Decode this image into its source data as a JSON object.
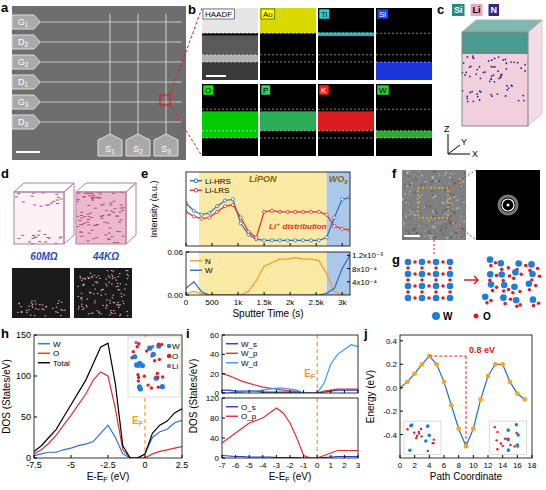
{
  "panels": {
    "a": {
      "letter": "a",
      "pads": [
        [
          "G",
          "1"
        ],
        [
          "D",
          "2"
        ],
        [
          "G",
          "2"
        ],
        [
          "D",
          "1"
        ],
        [
          "G",
          "3"
        ],
        [
          "D",
          "3"
        ]
      ],
      "sources": [
        [
          "S",
          "1"
        ],
        [
          "S",
          "2"
        ],
        [
          "S",
          "3"
        ]
      ]
    },
    "b": {
      "letter": "b",
      "maps": [
        "HAADF",
        "Au",
        "Ti",
        "Si",
        "O",
        "P",
        "K",
        "W"
      ],
      "colors": [
        "#ffffff",
        "#ffff00",
        "#33cccc",
        "#1f3fff",
        "#00ee00",
        "#33cc66",
        "#ff2020",
        "#33cc33"
      ]
    },
    "c": {
      "letter": "c",
      "elements": [
        "Si",
        "Li",
        "N"
      ],
      "colors": [
        "#2a8a7a",
        "#e8a8c0",
        "#2a2a8a"
      ],
      "axes": [
        "Z",
        "Y",
        "X"
      ]
    },
    "d": {
      "letter": "d",
      "states": [
        "60MΩ",
        "44KΩ"
      ]
    },
    "f": {
      "letter": "f"
    },
    "g": {
      "letter": "g",
      "atoms": [
        "W",
        "O"
      ],
      "colors": [
        "#1f7fd8",
        "#e02020"
      ]
    }
  },
  "chart_data": [
    {
      "letter": "e",
      "type": "line",
      "ylabel": "Intensity (a.u.)",
      "xlim": [
        0,
        3150
      ],
      "ylim": [
        0,
        1.3
      ],
      "xticks": [
        0,
        500,
        {
          "value": 1000,
          "label": "1k"
        },
        {
          "value": 1500,
          "label": "1.5k"
        },
        {
          "value": 2000,
          "label": "2k"
        },
        {
          "value": 2500,
          "label": "2.5k"
        },
        {
          "value": 3000,
          "label": "3k"
        }
      ],
      "tick_labels": false,
      "legend": "upper left",
      "marker": "circle",
      "regions": [
        {
          "label": "LiPON",
          "from": 250,
          "to": 2700,
          "color": "#fbe9a6"
        },
        {
          "label": [
            "WO",
            "x"
          ],
          "from": 2700,
          "to": 3150,
          "color": "#a9c8ea"
        }
      ],
      "x": [
        0,
        150,
        300,
        450,
        600,
        750,
        900,
        1050,
        1200,
        1350,
        1500,
        1650,
        1800,
        1950,
        2100,
        2250,
        2400,
        2550,
        2700,
        2850,
        3000,
        3150
      ],
      "series": [
        {
          "name": "Li-HRS",
          "color": "#2f6fb8",
          "values": [
            0.75,
            0.62,
            0.55,
            0.58,
            0.7,
            0.8,
            0.82,
            0.4,
            0.2,
            0.12,
            0.1,
            0.1,
            0.1,
            0.1,
            0.1,
            0.1,
            0.1,
            0.1,
            0.15,
            0.5,
            0.82,
            0.85
          ]
        },
        {
          "name": "Li-LRS",
          "color": "#e0302a",
          "values": [
            0.6,
            0.52,
            0.48,
            0.5,
            0.6,
            0.7,
            0.72,
            0.5,
            0.25,
            0.15,
            0.6,
            0.62,
            0.6,
            0.6,
            0.6,
            0.6,
            0.6,
            0.6,
            0.55,
            0.35,
            0.3,
            0.28
          ]
        }
      ],
      "annotations": [
        {
          "type": "text",
          "x": 2700,
          "y": 0.3,
          "label": "Li⁺ distribution",
          "color": "#e0302a"
        }
      ]
    },
    {
      "type": "line",
      "xlabel": "Sputter Time (s)",
      "xlim": [
        0,
        3150
      ],
      "xticks": [
        0,
        500,
        {
          "value": 1000,
          "label": "1k"
        },
        {
          "value": 1500,
          "label": "1.5k"
        },
        {
          "value": 2000,
          "label": "2k"
        },
        {
          "value": 2500,
          "label": "2.5k"
        },
        {
          "value": 3000,
          "label": "3k"
        }
      ],
      "ylim": [
        0,
        0.06
      ],
      "yticks": [
        {
          "value": 0,
          "label": "0.00"
        },
        {
          "value": 0.06,
          "label": "0.06"
        }
      ],
      "y2lim": [
        0,
        0.0013
      ],
      "y2ticks": [
        {
          "value": 0.0004,
          "label": "4x10⁻⁴"
        },
        {
          "value": 0.0008,
          "label": "8x10⁻⁴"
        },
        {
          "value": 0.0012,
          "label": "1.2x10⁻³"
        }
      ],
      "legend": "upper left",
      "x": [
        0,
        150,
        300,
        450,
        600,
        750,
        900,
        1050,
        1200,
        1350,
        1500,
        1650,
        1800,
        1950,
        2100,
        2250,
        2400,
        2550,
        2700,
        2850,
        3000,
        3150
      ],
      "series": [
        {
          "name": "N",
          "color": "#f0a020",
          "values": [
            0.002,
            0.005,
            0.002,
            0,
            0,
            0,
            0,
            0,
            0.005,
            0.02,
            0.04,
            0.045,
            0.05,
            0.05,
            0.052,
            0.05,
            0.05,
            0.048,
            0.03,
            0.005,
            0,
            0
          ]
        },
        {
          "name": "W",
          "color": "#2f6fb8",
          "axis": "y2",
          "values": [
            0.0002,
            0.0004,
            0.0001,
            0,
            0,
            0,
            0,
            0,
            0,
            0,
            0,
            0,
            0,
            0,
            0,
            0,
            0,
            0,
            5e-05,
            0.0002,
            0.0008,
            0.0012
          ]
        }
      ]
    },
    {
      "letter": "h",
      "type": "line",
      "xlabel": [
        "E-E",
        "F",
        " (eV)"
      ],
      "ylabel": "DOS (States/eV)",
      "xlim": [
        -7.5,
        2.5
      ],
      "xticks": [
        -7.5,
        -5,
        -2.5,
        0,
        2.5
      ],
      "ylim": [
        0,
        150
      ],
      "yticks": [
        0,
        50,
        100,
        150
      ],
      "legend": "upper left",
      "x": [
        -7.5,
        -7,
        -6.5,
        -6,
        -5.5,
        -5,
        -4.5,
        -4,
        -3.5,
        -3,
        -2.5,
        -2,
        -1.5,
        -1,
        -0.5,
        0,
        0.5,
        1,
        1.5,
        2,
        2.5
      ],
      "series": [
        {
          "name": "W",
          "color": "#2f6fd8",
          "values": [
            3,
            5,
            7,
            7,
            10,
            12,
            15,
            17,
            20,
            30,
            40,
            25,
            5,
            0,
            0,
            5,
            25,
            32,
            35,
            43,
            46
          ]
        },
        {
          "name": "O",
          "color": "#e03030",
          "values": [
            5,
            10,
            18,
            28,
            40,
            52,
            65,
            78,
            95,
            105,
            100,
            60,
            10,
            0,
            0,
            0,
            5,
            8,
            10,
            12,
            14
          ]
        },
        {
          "name": "Total",
          "color": "#000000",
          "values": [
            8,
            15,
            25,
            35,
            50,
            65,
            80,
            95,
            115,
            135,
            140,
            90,
            15,
            0,
            0,
            5,
            30,
            40,
            45,
            55,
            60
          ]
        }
      ],
      "annotations": [
        {
          "type": "vline",
          "x": 0,
          "label": [
            "E",
            "F"
          ],
          "color": "#f0a020",
          "line_style": "dashed"
        }
      ],
      "inset_labels": [
        "W",
        "O",
        "Li"
      ]
    },
    {
      "letter": "i",
      "type": "line",
      "ylabel": "DOS (States/eV)",
      "xlim": [
        -7,
        3
      ],
      "xticks": [
        -7,
        -6,
        -5,
        -4,
        -3,
        -2,
        -1,
        0,
        1,
        2,
        3
      ],
      "ylim": [
        0,
        60
      ],
      "yticks": [
        0,
        20,
        40,
        60
      ],
      "tick_labels": "y",
      "legend": "upper left",
      "x": [
        -7,
        -6.5,
        -6,
        -5.5,
        -5,
        -4.5,
        -4,
        -3.5,
        -3,
        -2.5,
        -2,
        -1.5,
        -1,
        -0.5,
        0,
        0.5,
        1,
        1.5,
        2,
        2.5,
        3
      ],
      "series": [
        {
          "name": "W_s",
          "color": "#1f3fbf",
          "values": [
            3,
            3,
            2,
            2,
            2,
            2,
            1,
            1,
            1,
            1,
            1,
            1,
            0,
            0,
            0,
            1,
            2,
            3,
            3,
            3,
            3
          ]
        },
        {
          "name": "W_p",
          "color": "#e03030",
          "values": [
            20,
            18,
            15,
            12,
            10,
            8,
            6,
            5,
            4,
            3,
            2,
            2,
            0,
            0,
            0,
            2,
            3,
            4,
            4,
            4,
            4
          ]
        },
        {
          "name": "W_d",
          "color": "#3399ff",
          "values": [
            0,
            0,
            1,
            1,
            2,
            2,
            3,
            4,
            5,
            5,
            4,
            3,
            0,
            0,
            0,
            10,
            30,
            40,
            45,
            50,
            48
          ]
        }
      ],
      "annotations": [
        {
          "type": "vline",
          "x": 0,
          "label": [
            "E",
            "F"
          ],
          "color": "#f0a020",
          "line_style": "dashed"
        }
      ]
    },
    {
      "type": "line",
      "xlabel": [
        "E-E",
        "F",
        " (eV)"
      ],
      "xlim": [
        -7,
        3
      ],
      "xticks": [
        -7,
        -6,
        -5,
        -4,
        -3,
        -2,
        -1,
        0,
        1,
        2,
        3
      ],
      "ylim": [
        0,
        120
      ],
      "yticks": [
        0,
        40,
        80,
        120
      ],
      "legend": "upper left",
      "x": [
        -7,
        -6.5,
        -6,
        -5.5,
        -5,
        -4.5,
        -4,
        -3.5,
        -3,
        -2.5,
        -2,
        -1.5,
        -1,
        -0.5,
        0,
        0.5,
        1,
        1.5,
        2,
        2.5,
        3
      ],
      "series": [
        {
          "name": "O_s",
          "color": "#1f3fbf",
          "values": [
            5,
            4,
            3,
            3,
            2,
            2,
            2,
            2,
            1,
            1,
            1,
            1,
            0,
            0,
            0,
            1,
            2,
            3,
            3,
            3,
            3
          ]
        },
        {
          "name": "O_p",
          "color": "#e03030",
          "values": [
            30,
            40,
            50,
            60,
            70,
            75,
            80,
            90,
            100,
            90,
            70,
            40,
            5,
            0,
            0,
            5,
            10,
            15,
            15,
            15,
            15
          ]
        }
      ],
      "annotations": [
        {
          "type": "vline",
          "x": 0,
          "color": "#f0a020",
          "line_style": "dashed"
        }
      ]
    },
    {
      "letter": "j",
      "type": "line",
      "xlabel": "Path Coordinate",
      "ylabel": "Energy (eV)",
      "xlim": [
        0,
        18
      ],
      "xticks": [
        0,
        2,
        4,
        6,
        8,
        10,
        12,
        14,
        16,
        18
      ],
      "ylim": [
        -0.6,
        0.45
      ],
      "yticks": [
        0.4,
        0.2,
        {
          "value": 0,
          "label": "0.0"
        },
        -0.2,
        -0.4
      ],
      "x": [
        0,
        1,
        2,
        3,
        4,
        5,
        6,
        7,
        8,
        9,
        10,
        11,
        12,
        13,
        14,
        15,
        16,
        17
      ],
      "series": [
        {
          "color": "#1f6fbf",
          "marker": "circle",
          "values": [
            0,
            0.05,
            0.12,
            0.2,
            0.27,
            0.2,
            0.05,
            -0.15,
            -0.35,
            -0.5,
            -0.35,
            -0.1,
            0.1,
            0.2,
            0.2,
            0.05,
            -0.05,
            -0.1
          ]
        }
      ],
      "annotations": [
        {
          "type": "range",
          "label": "0.8 eV",
          "color": "#e02020"
        }
      ]
    }
  ]
}
